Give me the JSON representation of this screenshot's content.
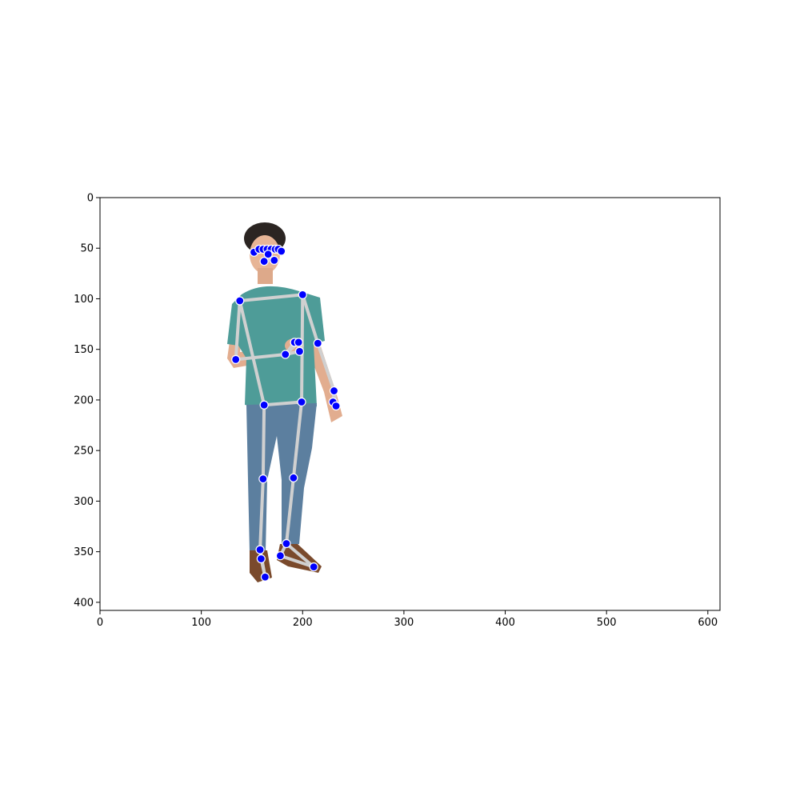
{
  "chart_data": {
    "type": "scatter",
    "title": "",
    "xlabel": "",
    "ylabel": "",
    "xlim": [
      0,
      612
    ],
    "ylim": [
      408,
      0
    ],
    "y_inverted": true,
    "grid": false,
    "legend": "none",
    "x_ticks": [
      "0",
      "100",
      "200",
      "300",
      "400",
      "500",
      "600"
    ],
    "y_ticks": [
      "0",
      "50",
      "100",
      "150",
      "200",
      "250",
      "300",
      "350",
      "400"
    ],
    "background_image": "person-standing-photo",
    "keypoint_color": "#0000ff",
    "skeleton_color": "#d0d0d0",
    "keypoints": [
      {
        "id": "head-left-ear",
        "x": 152,
        "y": 54
      },
      {
        "id": "head-left-eye-outer",
        "x": 157,
        "y": 51
      },
      {
        "id": "head-left-eye",
        "x": 161,
        "y": 51
      },
      {
        "id": "head-left-eye-inner",
        "x": 165,
        "y": 51
      },
      {
        "id": "head-right-eye-inner",
        "x": 169,
        "y": 51
      },
      {
        "id": "head-right-eye",
        "x": 173,
        "y": 51
      },
      {
        "id": "head-right-eye-outer",
        "x": 176,
        "y": 51
      },
      {
        "id": "head-right-ear",
        "x": 179,
        "y": 53
      },
      {
        "id": "nose",
        "x": 166,
        "y": 56
      },
      {
        "id": "mouth-left",
        "x": 162,
        "y": 63
      },
      {
        "id": "mouth-right",
        "x": 172,
        "y": 62
      },
      {
        "id": "left-shoulder",
        "x": 138,
        "y": 102
      },
      {
        "id": "right-shoulder",
        "x": 200,
        "y": 96
      },
      {
        "id": "left-elbow",
        "x": 134,
        "y": 160
      },
      {
        "id": "right-elbow",
        "x": 215,
        "y": 144
      },
      {
        "id": "left-wrist",
        "x": 183,
        "y": 155
      },
      {
        "id": "right-wrist",
        "x": 231,
        "y": 191
      },
      {
        "id": "left-pinky",
        "x": 192,
        "y": 143
      },
      {
        "id": "left-index",
        "x": 196,
        "y": 143
      },
      {
        "id": "left-thumb",
        "x": 197,
        "y": 152
      },
      {
        "id": "right-pinky",
        "x": 230,
        "y": 202
      },
      {
        "id": "right-index",
        "x": 233,
        "y": 206
      },
      {
        "id": "left-hip",
        "x": 162,
        "y": 205
      },
      {
        "id": "right-hip",
        "x": 199,
        "y": 202
      },
      {
        "id": "left-knee",
        "x": 161,
        "y": 278
      },
      {
        "id": "right-knee",
        "x": 191,
        "y": 277
      },
      {
        "id": "left-ankle",
        "x": 158,
        "y": 348
      },
      {
        "id": "right-ankle",
        "x": 184,
        "y": 342
      },
      {
        "id": "left-heel",
        "x": 159,
        "y": 357
      },
      {
        "id": "right-heel",
        "x": 178,
        "y": 354
      },
      {
        "id": "left-foot-index",
        "x": 163,
        "y": 375
      },
      {
        "id": "right-foot-index",
        "x": 211,
        "y": 365
      }
    ],
    "connections": [
      [
        "left-shoulder",
        "right-shoulder"
      ],
      [
        "left-shoulder",
        "left-hip"
      ],
      [
        "right-shoulder",
        "right-hip"
      ],
      [
        "left-hip",
        "right-hip"
      ],
      [
        "left-shoulder",
        "left-elbow"
      ],
      [
        "left-elbow",
        "left-wrist"
      ],
      [
        "left-wrist",
        "left-pinky"
      ],
      [
        "left-wrist",
        "left-index"
      ],
      [
        "left-wrist",
        "left-thumb"
      ],
      [
        "left-pinky",
        "left-index"
      ],
      [
        "right-shoulder",
        "right-elbow"
      ],
      [
        "right-elbow",
        "right-wrist"
      ],
      [
        "right-wrist",
        "right-pinky"
      ],
      [
        "right-wrist",
        "right-index"
      ],
      [
        "right-pinky",
        "right-index"
      ],
      [
        "left-hip",
        "left-knee"
      ],
      [
        "left-knee",
        "left-ankle"
      ],
      [
        "left-ankle",
        "left-heel"
      ],
      [
        "left-heel",
        "left-foot-index"
      ],
      [
        "left-ankle",
        "left-foot-index"
      ],
      [
        "right-hip",
        "right-knee"
      ],
      [
        "right-knee",
        "right-ankle"
      ],
      [
        "right-ankle",
        "right-heel"
      ],
      [
        "right-heel",
        "right-foot-index"
      ],
      [
        "right-ankle",
        "right-foot-index"
      ],
      [
        "head-left-ear",
        "head-left-eye-outer"
      ],
      [
        "head-left-eye-outer",
        "head-left-eye"
      ],
      [
        "head-left-eye",
        "head-left-eye-inner"
      ],
      [
        "head-left-eye-inner",
        "nose"
      ],
      [
        "nose",
        "head-right-eye-inner"
      ],
      [
        "head-right-eye-inner",
        "head-right-eye"
      ],
      [
        "head-right-eye",
        "head-right-eye-outer"
      ],
      [
        "head-right-eye-outer",
        "head-right-ear"
      ],
      [
        "mouth-left",
        "mouth-right"
      ]
    ]
  }
}
